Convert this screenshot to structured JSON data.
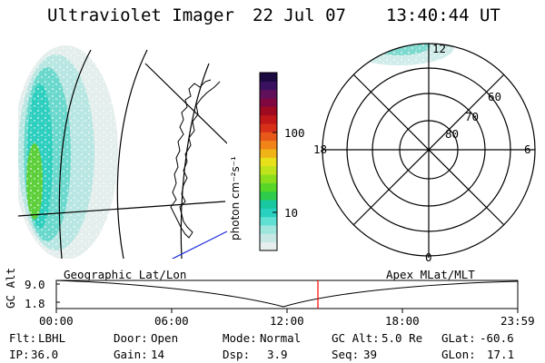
{
  "header": {
    "title": "Ultraviolet Imager",
    "date": "22 Jul 07",
    "time": "13:40:44 UT"
  },
  "colorbar": {
    "label": "photon cm⁻²s⁻¹",
    "ticks": [
      "100",
      "10"
    ],
    "colors": [
      "#e6eeee",
      "#c8e8e6",
      "#9fe6df",
      "#5fe0d2",
      "#28d0c0",
      "#19c7a0",
      "#2ecc4a",
      "#58d628",
      "#8cde1c",
      "#c0e41c",
      "#e8e01a",
      "#f0b418",
      "#f08418",
      "#e85818",
      "#d83018",
      "#c01818",
      "#a00a20",
      "#800840",
      "#60105a",
      "#3a1060",
      "#1a0a40"
    ],
    "scale": "log"
  },
  "polar_labels": {
    "top": "12",
    "bottom": "0",
    "left": "18",
    "right": "6",
    "rings": [
      "60",
      "70",
      "80"
    ]
  },
  "timeline": {
    "y_label": "GC Alt",
    "y_ticks": [
      "9.0",
      "1.8"
    ],
    "left_caption": "Geographic Lat/Lon",
    "right_caption": "Apex MLat/MLT",
    "x_ticks": [
      "00:00",
      "06:00",
      "12:00",
      "18:00",
      "23:59"
    ],
    "marker_color": "#ff0000",
    "marker_time": "13:40:44"
  },
  "info": {
    "row1": [
      {
        "label": "Flt:",
        "value": "LBHL"
      },
      {
        "label": "Door:",
        "value": "Open"
      },
      {
        "label": "Mode:",
        "value": "Normal"
      },
      {
        "label": "GC Alt:",
        "value": "5.0 Re"
      },
      {
        "label": "GLat:",
        "value": "-60.6"
      }
    ],
    "row2": [
      {
        "label": "IP:",
        "value": "36.0"
      },
      {
        "label": "Gain:",
        "value": "14"
      },
      {
        "label": "Dsp:",
        "value": "3.9"
      },
      {
        "label": "Seq:",
        "value": "39"
      },
      {
        "label": "GLon:",
        "value": "17.1"
      }
    ]
  }
}
